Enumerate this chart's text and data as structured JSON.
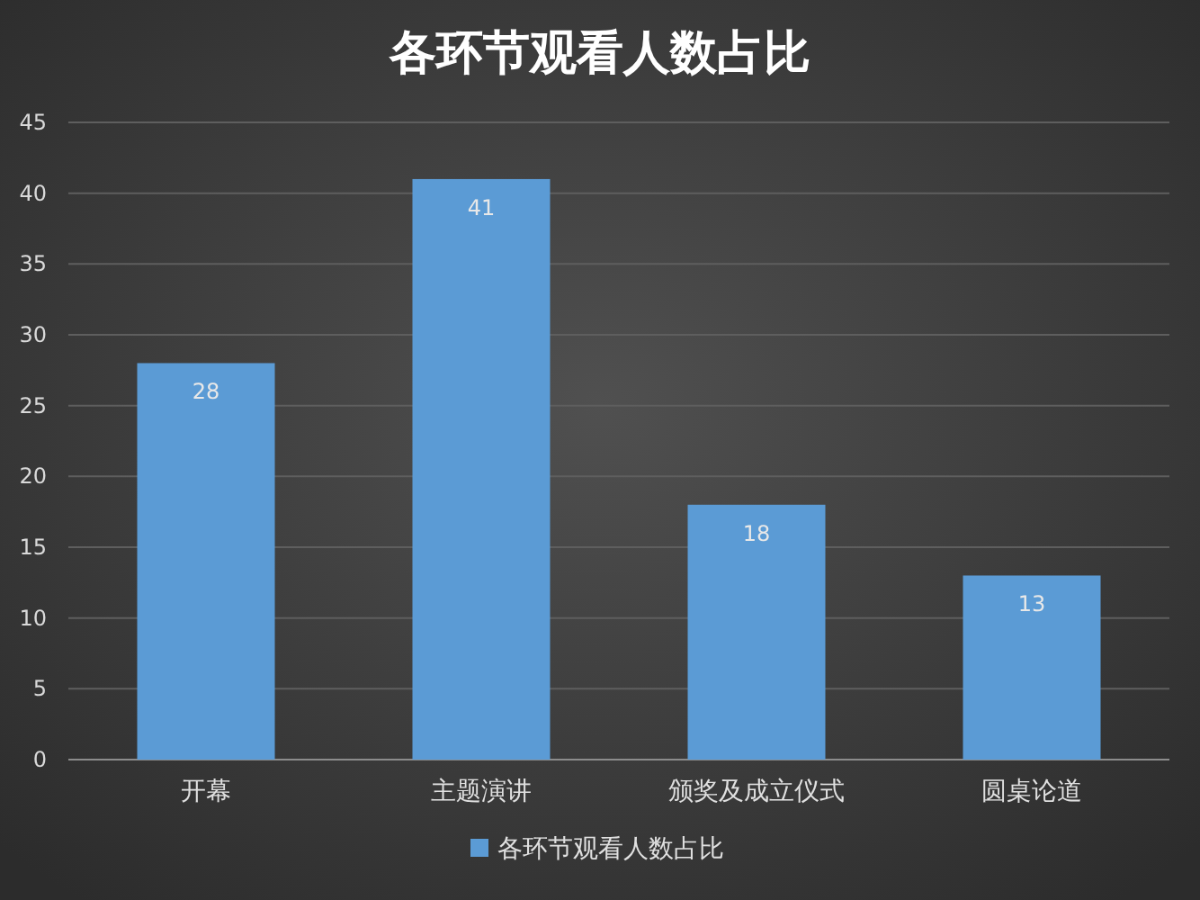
{
  "chart_data": {
    "type": "bar",
    "title": "各环节观看人数占比",
    "categories": [
      "开幕",
      "主题演讲",
      "颁奖及成立仪式",
      "圆桌论道"
    ],
    "series": [
      {
        "name": "各环节观看人数占比",
        "color": "#5b9bd5",
        "values": [
          28,
          41,
          18,
          13
        ]
      }
    ],
    "ylim": [
      0,
      45
    ],
    "yticks": [
      0,
      5,
      10,
      15,
      20,
      25,
      30,
      35,
      40,
      45
    ],
    "grid": "y",
    "data_labels": true,
    "legend": "bottom"
  }
}
